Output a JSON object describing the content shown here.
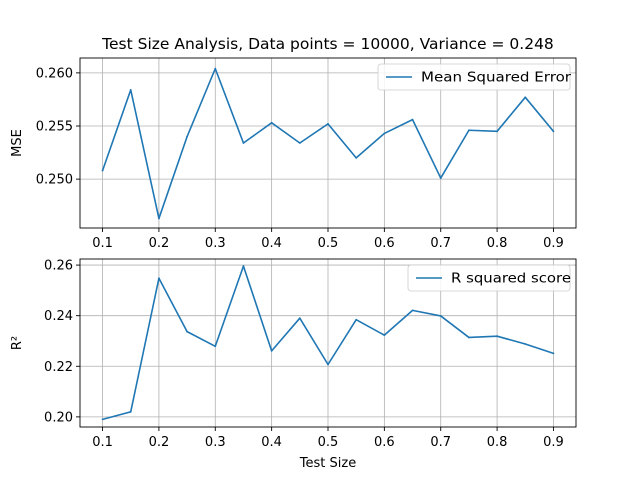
{
  "figure": {
    "title": "Test Size Analysis, Data points = 10000, Variance = 0.248",
    "line_color": "#1f77b4",
    "grid_color": "#b0b0b0"
  },
  "chart_data": [
    {
      "type": "line",
      "title": "Test Size Analysis, Data points = 10000, Variance = 0.248",
      "xlabel": "",
      "ylabel": "MSE",
      "x": [
        0.1,
        0.15,
        0.2,
        0.25,
        0.3,
        0.35,
        0.4,
        0.45,
        0.5,
        0.55,
        0.6,
        0.65,
        0.7,
        0.75,
        0.8,
        0.85,
        0.9
      ],
      "x_ticks": [
        "0.1",
        "0.2",
        "0.3",
        "0.4",
        "0.5",
        "0.6",
        "0.7",
        "0.8",
        "0.9"
      ],
      "y_ticks": [
        "0.250",
        "0.255",
        "0.260"
      ],
      "xlim": [
        0.06,
        0.94
      ],
      "ylim": [
        0.2454,
        0.2614
      ],
      "grid": true,
      "legend_position": "top-right",
      "series": [
        {
          "name": "Mean Squared Error",
          "values": [
            0.2508,
            0.2584,
            0.2463,
            0.254,
            0.2604,
            0.2534,
            0.2553,
            0.2534,
            0.2552,
            0.252,
            0.2543,
            0.2556,
            0.2501,
            0.2546,
            0.2545,
            0.2577,
            0.2545
          ]
        }
      ]
    },
    {
      "type": "line",
      "xlabel": "Test Size",
      "ylabel": "R²",
      "x": [
        0.1,
        0.15,
        0.2,
        0.25,
        0.3,
        0.35,
        0.4,
        0.45,
        0.5,
        0.55,
        0.6,
        0.65,
        0.7,
        0.75,
        0.8,
        0.85,
        0.9
      ],
      "x_ticks": [
        "0.1",
        "0.2",
        "0.3",
        "0.4",
        "0.5",
        "0.6",
        "0.7",
        "0.8",
        "0.9"
      ],
      "y_ticks": [
        "0.20",
        "0.22",
        "0.24",
        "0.26"
      ],
      "xlim": [
        0.06,
        0.94
      ],
      "ylim": [
        0.196,
        0.2624
      ],
      "grid": true,
      "legend_position": "top-right",
      "series": [
        {
          "name": "R squared score",
          "values": [
            0.199,
            0.202,
            0.2548,
            0.2337,
            0.2279,
            0.2596,
            0.2261,
            0.239,
            0.2207,
            0.2384,
            0.2323,
            0.2421,
            0.2399,
            0.2314,
            0.2319,
            0.2288,
            0.2251
          ]
        }
      ]
    }
  ]
}
